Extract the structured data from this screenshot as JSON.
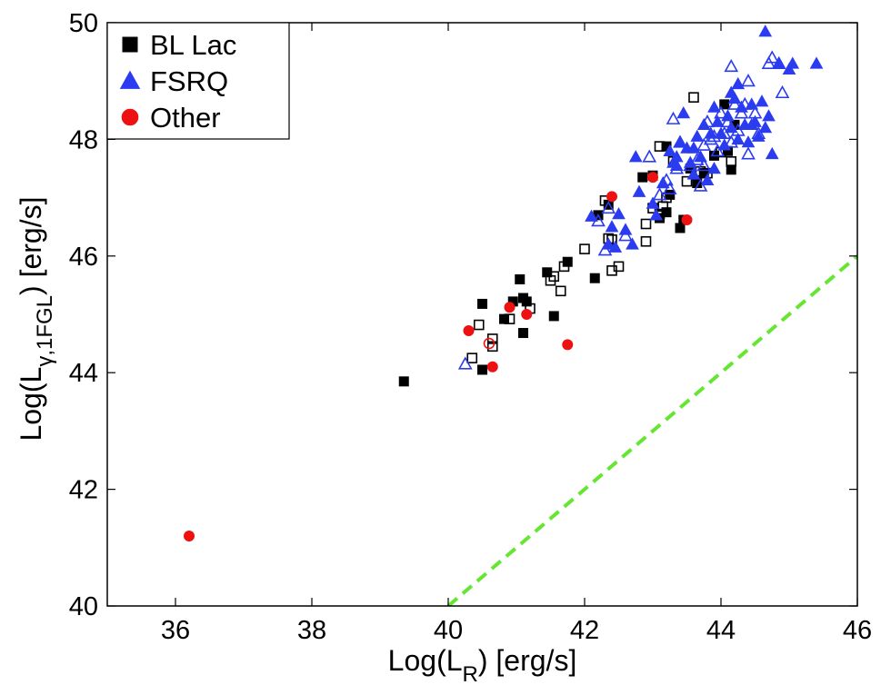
{
  "chart_data": {
    "type": "scatter",
    "title": "",
    "xlabel": "Log(L",
    "xlabel_sub": "R",
    "xlabel_tail": ") [erg/s]",
    "ylabel": "Log(L",
    "ylabel_sub": "γ,1FGL",
    "ylabel_tail": ") [erg/s]",
    "xlim": [
      35,
      46
    ],
    "ylim": [
      40,
      50
    ],
    "xticks": [
      "36",
      "38",
      "40",
      "42",
      "44",
      "46"
    ],
    "yticks": [
      "40",
      "42",
      "44",
      "46",
      "48",
      "50"
    ],
    "grid": false,
    "legend_position": "top-left",
    "colors": {
      "bl_lac": "#000000",
      "fsrq": "#2b3cf0",
      "other": "#ee1111",
      "reference_line": "#66e633"
    },
    "reference_line": {
      "name": "y = x",
      "x": [
        40,
        46
      ],
      "y": [
        40,
        46
      ],
      "style": "dashed"
    },
    "series": [
      {
        "name": "BL Lac",
        "marker": "square",
        "filled": [
          [
            39.35,
            43.85
          ],
          [
            40.5,
            44.05
          ],
          [
            40.5,
            45.18
          ],
          [
            40.82,
            44.92
          ],
          [
            40.95,
            45.22
          ],
          [
            41.05,
            45.6
          ],
          [
            41.1,
            45.28
          ],
          [
            41.15,
            45.22
          ],
          [
            41.1,
            44.68
          ],
          [
            41.45,
            45.72
          ],
          [
            41.75,
            45.9
          ],
          [
            41.55,
            44.97
          ],
          [
            42.15,
            45.62
          ],
          [
            42.2,
            46.7
          ],
          [
            42.35,
            46.88
          ],
          [
            42.85,
            47.35
          ],
          [
            43.0,
            47.38
          ],
          [
            43.1,
            46.65
          ],
          [
            43.2,
            46.75
          ],
          [
            43.25,
            47.05
          ],
          [
            43.4,
            46.48
          ],
          [
            43.45,
            46.62
          ],
          [
            43.55,
            47.5
          ],
          [
            43.65,
            47.25
          ],
          [
            43.75,
            47.42
          ],
          [
            43.9,
            47.72
          ],
          [
            44.05,
            48.6
          ],
          [
            44.1,
            47.8
          ],
          [
            44.15,
            47.48
          ],
          [
            44.2,
            48.25
          ],
          [
            43.2,
            47.88
          ]
        ],
        "open": [
          [
            40.35,
            44.25
          ],
          [
            40.45,
            44.82
          ],
          [
            40.65,
            44.45
          ],
          [
            40.65,
            44.58
          ],
          [
            40.9,
            44.92
          ],
          [
            41.2,
            45.1
          ],
          [
            41.5,
            45.58
          ],
          [
            41.55,
            45.65
          ],
          [
            41.65,
            45.4
          ],
          [
            41.7,
            45.82
          ],
          [
            42.0,
            46.12
          ],
          [
            42.3,
            46.95
          ],
          [
            42.35,
            46.3
          ],
          [
            42.4,
            46.28
          ],
          [
            42.4,
            45.75
          ],
          [
            42.5,
            45.82
          ],
          [
            42.9,
            46.55
          ],
          [
            42.9,
            46.25
          ],
          [
            43.0,
            46.82
          ],
          [
            43.1,
            46.72
          ],
          [
            43.15,
            46.85
          ],
          [
            43.2,
            47.0
          ],
          [
            43.1,
            47.88
          ],
          [
            43.3,
            47.62
          ],
          [
            43.5,
            47.28
          ],
          [
            43.6,
            48.72
          ],
          [
            43.7,
            47.45
          ],
          [
            43.8,
            47.42
          ],
          [
            44.0,
            47.78
          ],
          [
            44.15,
            47.62
          ]
        ]
      },
      {
        "name": "FSRQ",
        "marker": "triangle",
        "filled": [
          [
            42.1,
            46.68
          ],
          [
            42.35,
            46.2
          ],
          [
            42.4,
            46.5
          ],
          [
            42.45,
            46.15
          ],
          [
            42.5,
            46.72
          ],
          [
            42.6,
            46.45
          ],
          [
            42.7,
            46.2
          ],
          [
            42.8,
            47.1
          ],
          [
            42.75,
            47.7
          ],
          [
            43.0,
            46.9
          ],
          [
            43.05,
            46.7
          ],
          [
            43.15,
            47.25
          ],
          [
            43.25,
            47.8
          ],
          [
            43.3,
            47.6
          ],
          [
            43.35,
            47.7
          ],
          [
            43.4,
            47.95
          ],
          [
            43.45,
            48.45
          ],
          [
            43.5,
            47.85
          ],
          [
            43.55,
            47.6
          ],
          [
            43.6,
            47.4
          ],
          [
            43.65,
            48.05
          ],
          [
            43.7,
            47.7
          ],
          [
            43.75,
            48.25
          ],
          [
            43.8,
            47.3
          ],
          [
            43.85,
            48.1
          ],
          [
            43.9,
            47.5
          ],
          [
            43.95,
            48.3
          ],
          [
            44.0,
            48.1
          ],
          [
            44.05,
            47.9
          ],
          [
            44.1,
            48.4
          ],
          [
            44.15,
            48.2
          ],
          [
            44.2,
            48.7
          ],
          [
            44.25,
            48.0
          ],
          [
            44.3,
            48.55
          ],
          [
            44.35,
            48.25
          ],
          [
            44.4,
            47.95
          ],
          [
            44.45,
            48.6
          ],
          [
            44.5,
            48.3
          ],
          [
            44.55,
            48.05
          ],
          [
            44.6,
            48.65
          ],
          [
            44.65,
            48.2
          ],
          [
            44.7,
            48.4
          ],
          [
            44.75,
            47.75
          ],
          [
            44.65,
            49.85
          ],
          [
            44.85,
            49.3
          ],
          [
            45.0,
            49.2
          ],
          [
            45.05,
            49.3
          ],
          [
            45.4,
            49.3
          ],
          [
            44.15,
            48.8
          ],
          [
            43.9,
            48.55
          ],
          [
            44.45,
            48.25
          ],
          [
            43.6,
            47.85
          ],
          [
            43.35,
            47.55
          ],
          [
            44.25,
            48.95
          ]
        ],
        "open": [
          [
            40.25,
            44.15
          ],
          [
            42.2,
            46.6
          ],
          [
            42.3,
            46.1
          ],
          [
            42.35,
            46.82
          ],
          [
            42.6,
            46.35
          ],
          [
            42.95,
            47.7
          ],
          [
            43.1,
            47.05
          ],
          [
            43.2,
            47.3
          ],
          [
            43.25,
            47.15
          ],
          [
            43.35,
            47.5
          ],
          [
            43.4,
            47.95
          ],
          [
            43.55,
            47.55
          ],
          [
            43.65,
            47.65
          ],
          [
            43.7,
            47.2
          ],
          [
            43.75,
            47.9
          ],
          [
            43.8,
            48.3
          ],
          [
            43.85,
            48.0
          ],
          [
            43.95,
            47.8
          ],
          [
            44.0,
            48.45
          ],
          [
            44.05,
            48.1
          ],
          [
            44.1,
            48.3
          ],
          [
            44.15,
            47.95
          ],
          [
            44.2,
            48.6
          ],
          [
            44.25,
            48.15
          ],
          [
            44.3,
            48.45
          ],
          [
            44.35,
            48.6
          ],
          [
            44.4,
            47.75
          ],
          [
            44.5,
            48.45
          ],
          [
            44.55,
            48.1
          ],
          [
            44.7,
            49.3
          ],
          [
            44.75,
            49.4
          ],
          [
            44.85,
            49.3
          ],
          [
            44.9,
            48.8
          ],
          [
            44.15,
            49.25
          ],
          [
            44.4,
            49.0
          ],
          [
            43.3,
            48.35
          ],
          [
            43.75,
            47.55
          ],
          [
            43.9,
            48.05
          ]
        ]
      },
      {
        "name": "Other",
        "marker": "circle",
        "filled": [
          [
            36.2,
            41.2
          ],
          [
            40.3,
            44.72
          ],
          [
            40.65,
            44.1
          ],
          [
            40.9,
            45.12
          ],
          [
            41.15,
            45.0
          ],
          [
            41.75,
            44.48
          ],
          [
            42.4,
            47.02
          ],
          [
            43.0,
            47.35
          ],
          [
            43.5,
            46.62
          ]
        ],
        "open": [
          [
            40.6,
            44.5
          ]
        ]
      }
    ]
  }
}
